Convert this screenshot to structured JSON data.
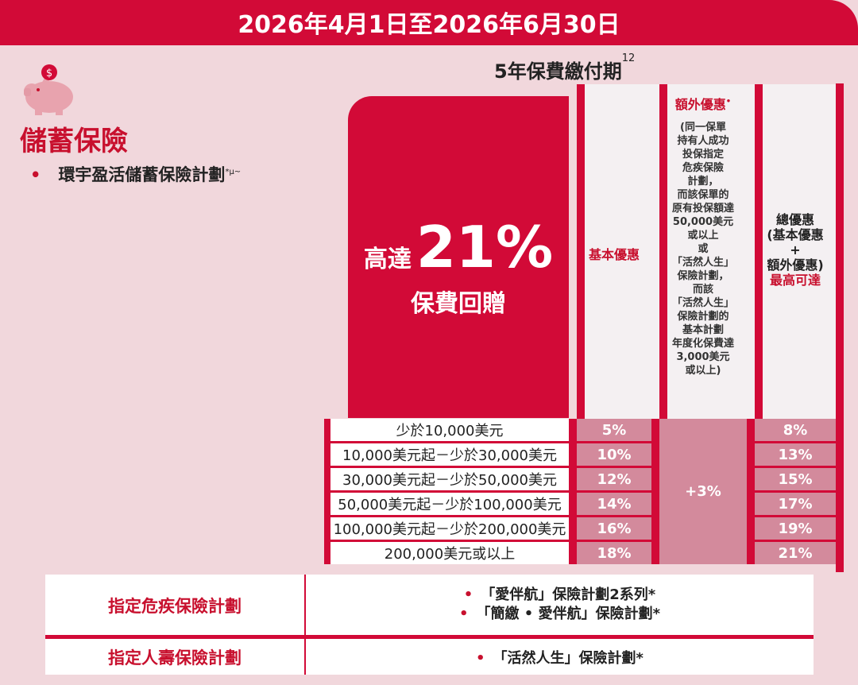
{
  "header": {
    "period": "2026年4月1日至2026年6月30日"
  },
  "subtitle": {
    "text": "5年保費繳付期",
    "sup": "12"
  },
  "category": {
    "title": "儲蓄保險",
    "plan": "環宇盈活儲蓄保險計劃",
    "plan_sup": "*µ~",
    "bullet": "•"
  },
  "promo": {
    "prefix": "高達",
    "percent": "21%",
    "line2": "保費回贈"
  },
  "columns": {
    "basic": "基本優惠",
    "extra_title": "額外優惠",
    "extra_sup": "•",
    "extra_desc": "(同一保單\n持有人成功\n投保指定\n危疾保險\n計劃，\n而該保單的\n原有投保額達\n50,000美元\n或以上\n或\n「活然人生」\n保險計劃，\n而該\n「活然人生」\n保險計劃的\n基本計劃\n年度化保費達\n3,000美元\n或以上)",
    "total_l1": "總優惠",
    "total_l2": "(基本優惠",
    "total_l3": "+",
    "total_l4": "額外優惠)",
    "total_l5": "最高可達"
  },
  "rows": [
    {
      "range": "少於10,000美元",
      "basic": "5%",
      "total": "8%"
    },
    {
      "range": "10,000美元起－少於30,000美元",
      "basic": "10%",
      "total": "13%"
    },
    {
      "range": "30,000美元起－少於50,000美元",
      "basic": "12%",
      "total": "15%"
    },
    {
      "range": "50,000美元起－少於100,000美元",
      "basic": "14%",
      "total": "17%"
    },
    {
      "range": "100,000美元起－少於200,000美元",
      "basic": "16%",
      "total": "19%"
    },
    {
      "range": "200,000美元或以上",
      "basic": "18%",
      "total": "21%"
    }
  ],
  "extra_value": "+3%",
  "bottom": {
    "ci_label": "指定危疾保險計劃",
    "ci_plans": [
      "「愛伴航」保險計劃2系列*",
      "「簡繳 • 愛伴航」保險計劃*"
    ],
    "life_label": "指定人壽保險計劃",
    "life_plans": [
      "「活然人生」保險計劃*"
    ],
    "bullet": "•"
  },
  "icons": {
    "piggy": "piggy-bank-icon"
  },
  "colors": {
    "brand_red": "#d20a37",
    "pink_bg": "#f1d7dc",
    "cell_pink": "#d38a9c"
  }
}
